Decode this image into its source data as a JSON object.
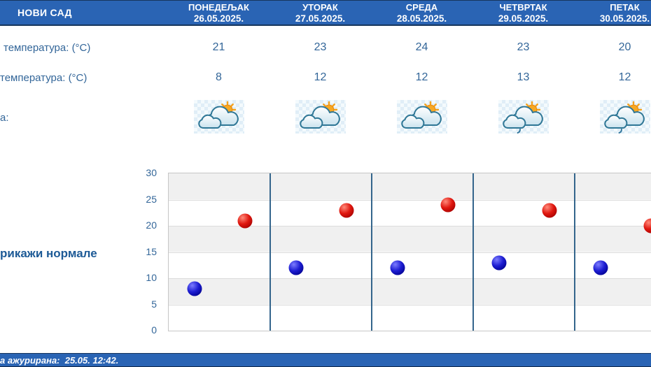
{
  "header": {
    "city": "НОВИ САД"
  },
  "days": [
    {
      "name": "ПОНЕДЕЉАК",
      "date": "26.05.2025.",
      "max": "21",
      "min": "8",
      "icon": "partly-cloudy"
    },
    {
      "name": "УТОРАК",
      "date": "27.05.2025.",
      "max": "23",
      "min": "12",
      "icon": "partly-cloudy"
    },
    {
      "name": "СРЕДА",
      "date": "28.05.2025.",
      "max": "24",
      "min": "12",
      "icon": "partly-cloudy"
    },
    {
      "name": "ЧЕТВРТАК",
      "date": "29.05.2025.",
      "max": "23",
      "min": "13",
      "icon": "partly-cloudy-light-rain"
    },
    {
      "name": "ПЕТАК",
      "date": "30.05.2025.",
      "max": "20",
      "min": "12",
      "icon": "partly-cloudy-light-rain"
    }
  ],
  "rows": {
    "max_label": "температура: (°C)",
    "min_label": "температура: (°C)",
    "icon_label": "а:"
  },
  "normals_link_label": "рикажи нормале",
  "footer": {
    "updated_text": "а ажурирана:  25.05. 12:42."
  },
  "colors": {
    "header_blue": "#2a64b4",
    "header_border": "#17365d",
    "text_blue": "#336699",
    "link_blue": "#1d5a96",
    "max_dot_red": "#e01810",
    "min_dot_blue": "#1d1dd2",
    "divider_blue": "#34658c",
    "band_gray": "#f0f0f0"
  },
  "chart_data": {
    "type": "scatter",
    "categories": [
      "ПОНЕДЕЉАК 26.05.2025.",
      "УТОРАК 27.05.2025.",
      "СРЕДА 28.05.2025.",
      "ЧЕТВРТАК 29.05.2025.",
      "ПЕТАК 30.05.2025."
    ],
    "series": [
      {
        "name": "max-temperature",
        "color": "#e01810",
        "values": [
          21,
          23,
          24,
          23,
          20
        ]
      },
      {
        "name": "min-temperature",
        "color": "#1d1dd2",
        "values": [
          8,
          12,
          12,
          13,
          12
        ]
      }
    ],
    "title": "",
    "xlabel": "",
    "ylabel": "",
    "ylim": [
      0,
      30
    ],
    "yticks": [
      0,
      5,
      10,
      15,
      20,
      25,
      30
    ],
    "grid": true,
    "legend": "none",
    "band_step": 5
  }
}
